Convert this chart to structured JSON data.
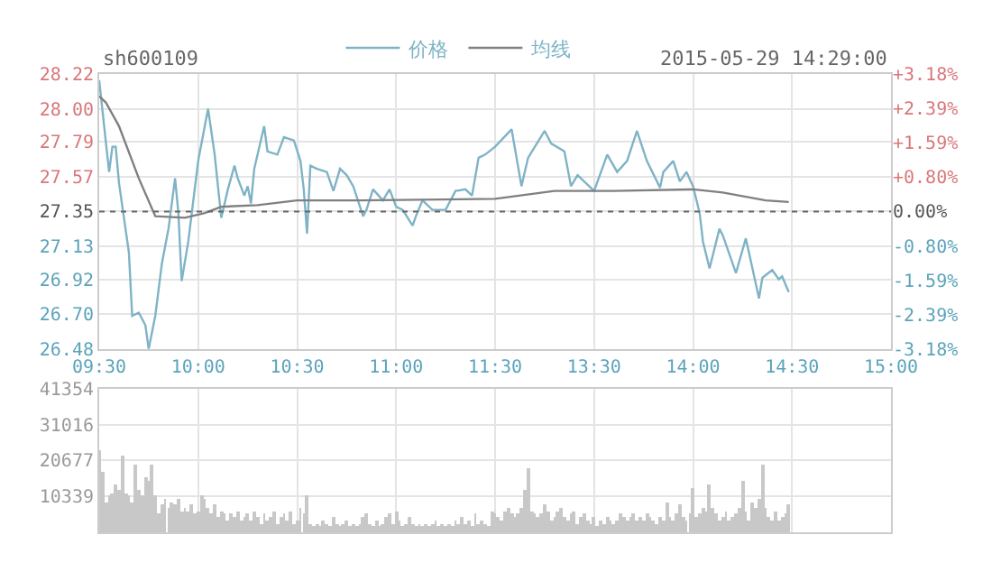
{
  "chart_data": [
    {
      "type": "line",
      "title": "sh600109",
      "annotations": [
        "2015-05-29 14:29:00"
      ],
      "legend": "top",
      "grid": true,
      "marker": "none",
      "categories": [
        "09:30",
        null,
        null,
        null,
        null,
        null,
        null,
        null,
        null,
        null,
        null,
        null,
        null,
        null,
        null,
        null,
        null,
        null,
        null,
        null,
        null,
        null,
        null,
        null,
        null,
        null,
        null,
        null,
        null,
        null,
        "10:00",
        null,
        null,
        null,
        null,
        null,
        null,
        null,
        null,
        null,
        null,
        null,
        null,
        null,
        null,
        null,
        null,
        null,
        null,
        null,
        null,
        null,
        null,
        null,
        null,
        null,
        null,
        null,
        null,
        null,
        "10:30",
        null,
        null,
        null,
        null,
        null,
        null,
        null,
        null,
        null,
        null,
        null,
        null,
        null,
        null,
        null,
        null,
        null,
        null,
        null,
        null,
        null,
        null,
        null,
        null,
        null,
        null,
        null,
        null,
        null,
        "11:00",
        null,
        null,
        null,
        null,
        null,
        null,
        null,
        null,
        null,
        null,
        null,
        null,
        null,
        null,
        null,
        null,
        null,
        null,
        null,
        null,
        null,
        null,
        null,
        null,
        null,
        null,
        null,
        null,
        null,
        "11:30",
        null,
        null,
        null,
        null,
        null,
        null,
        null,
        null,
        null,
        null,
        null,
        null,
        null,
        null,
        null,
        null,
        null,
        null,
        null,
        null,
        null,
        null,
        null,
        null,
        null,
        null,
        null,
        null,
        null,
        "13:30",
        null,
        null,
        null,
        null,
        null,
        null,
        null,
        null,
        null,
        null,
        null,
        null,
        null,
        null,
        null,
        null,
        null,
        null,
        null,
        null,
        null,
        null,
        null,
        null,
        null,
        null,
        null,
        null,
        null,
        "14:00",
        null,
        null,
        null,
        null,
        null,
        null,
        null,
        null,
        null,
        null,
        null,
        null,
        null,
        null,
        null,
        null,
        null,
        null,
        null,
        null,
        null,
        null,
        null,
        null,
        null,
        null,
        null,
        null,
        null,
        "14:30",
        null,
        null,
        null,
        null,
        null,
        null,
        null,
        null,
        null,
        null,
        null,
        null,
        null,
        null,
        null,
        null,
        null,
        null,
        null,
        null,
        null,
        null,
        null,
        null,
        null,
        null,
        null,
        null,
        null,
        "15:00"
      ],
      "ylim": [
        26.48,
        28.22
      ],
      "yticks": [
        26.48,
        {
          "value": 26.7,
          "label": "26.70"
        },
        26.92,
        27.13,
        27.35,
        27.57,
        27.79,
        {
          "value": 28.0,
          "label": "28.00"
        },
        28.22
      ],
      "y2lim": [
        -3.18,
        3.18
      ],
      "y2ticks": [
        {
          "value": -3.18,
          "label": "-3.18%"
        },
        {
          "value": -2.39,
          "label": "-2.39%"
        },
        {
          "value": -1.59,
          "label": "-1.59%"
        },
        {
          "value": -0.8,
          "label": "-0.80%"
        },
        {
          "value": 0,
          "label": "0.00%"
        },
        {
          "value": 0.8,
          "label": "+0.80%"
        },
        {
          "value": 1.59,
          "label": "+1.59%"
        },
        {
          "value": 2.39,
          "label": "+2.39%"
        },
        {
          "value": 3.18,
          "label": "+3.18%"
        }
      ],
      "ref_lines": [
        {
          "axis": "y",
          "value": 27.35,
          "label": null,
          "color": "#666666",
          "line_style": "dotted"
        }
      ],
      "series": [
        {
          "name": "价格",
          "color": "#7fb3c6",
          "values": [
            28.18,
            null,
            null,
            27.6,
            27.76,
            27.76,
            27.53,
            null,
            null,
            27.09,
            26.69,
            null,
            26.71,
            null,
            26.63,
            26.48,
            null,
            26.69,
            null,
            27.02,
            null,
            27.24,
            null,
            27.56,
            27.34,
            26.91,
            null,
            27.16,
            null,
            null,
            27.67,
            null,
            null,
            28.0,
            null,
            27.71,
            null,
            27.31,
            null,
            27.49,
            null,
            27.64,
            27.56,
            null,
            27.45,
            27.51,
            27.4,
            27.62,
            null,
            null,
            27.89,
            27.73,
            null,
            null,
            27.71,
            null,
            27.82,
            null,
            null,
            27.8,
            null,
            27.67,
            27.49,
            27.21,
            27.64,
            null,
            27.62,
            null,
            null,
            27.6,
            null,
            27.48,
            null,
            27.62,
            null,
            27.58,
            null,
            27.51,
            null,
            null,
            27.32,
            27.36,
            null,
            27.49,
            null,
            null,
            27.42,
            null,
            27.49,
            null,
            27.38,
            null,
            27.36,
            null,
            null,
            27.26,
            27.32,
            null,
            27.42,
            null,
            null,
            27.36,
            null,
            null,
            null,
            27.36,
            null,
            null,
            27.48,
            null,
            null,
            27.49,
            null,
            27.45,
            null,
            27.69,
            null,
            27.71,
            null,
            null,
            27.76,
            null,
            null,
            null,
            null,
            27.87,
            null,
            null,
            27.51,
            null,
            27.69,
            null,
            null,
            null,
            null,
            27.86,
            null,
            27.78,
            null,
            null,
            null,
            27.73,
            null,
            27.51,
            null,
            27.58,
            null,
            null,
            null,
            null,
            27.48,
            null,
            null,
            null,
            27.71,
            null,
            null,
            27.6,
            null,
            null,
            27.67,
            null,
            null,
            27.86,
            null,
            null,
            27.67,
            null,
            null,
            null,
            27.5,
            27.6,
            null,
            null,
            27.67,
            null,
            27.54,
            null,
            27.6,
            null,
            27.51,
            null,
            27.34,
            27.16,
            null,
            26.99,
            null,
            null,
            27.24,
            27.2,
            null,
            null,
            null,
            26.96,
            null,
            null,
            27.18,
            null,
            null,
            null,
            26.8,
            26.93,
            null,
            null,
            26.98,
            null,
            26.92,
            26.94,
            null,
            26.84,
            null,
            null,
            null,
            null,
            null,
            null,
            null,
            null,
            null,
            null,
            null,
            null,
            null,
            null,
            null,
            null,
            null,
            null,
            null,
            null,
            null,
            null,
            null,
            null,
            null,
            null,
            null,
            null,
            null,
            null,
            null
          ]
        },
        {
          "name": "均线",
          "color": "#808080",
          "values": [
            28.08,
            null,
            28.04,
            null,
            null,
            null,
            27.89,
            null,
            null,
            null,
            null,
            null,
            27.56,
            null,
            null,
            null,
            null,
            27.32,
            null,
            null,
            null,
            null,
            null,
            null,
            null,
            null,
            27.31,
            null,
            null,
            null,
            null,
            null,
            27.34,
            null,
            null,
            null,
            null,
            27.38,
            null,
            null,
            null,
            null,
            null,
            null,
            null,
            null,
            null,
            null,
            27.39,
            null,
            null,
            null,
            null,
            null,
            null,
            null,
            null,
            null,
            null,
            null,
            27.42,
            null,
            null,
            null,
            null,
            null,
            null,
            null,
            null,
            null,
            null,
            null,
            null,
            null,
            null,
            null,
            null,
            null,
            null,
            27.42,
            null,
            null,
            null,
            null,
            null,
            null,
            null,
            null,
            null,
            null,
            null,
            null,
            null,
            null,
            null,
            null,
            null,
            null,
            null,
            null,
            null,
            null,
            null,
            null,
            null,
            null,
            null,
            null,
            null,
            null,
            null,
            null,
            null,
            null,
            null,
            null,
            null,
            null,
            null,
            null,
            27.43,
            null,
            null,
            null,
            null,
            null,
            null,
            null,
            null,
            null,
            null,
            null,
            null,
            null,
            null,
            null,
            null,
            null,
            27.48,
            null,
            null,
            null,
            null,
            null,
            null,
            null,
            null,
            null,
            null,
            null,
            null,
            null,
            null,
            null,
            null,
            null,
            27.48,
            null,
            null,
            null,
            null,
            null,
            null,
            null,
            null,
            null,
            null,
            null,
            null,
            null,
            null,
            null,
            null,
            null,
            null,
            null,
            null,
            null,
            null,
            null,
            27.49,
            null,
            null,
            null,
            null,
            null,
            null,
            null,
            null,
            27.47,
            null,
            null,
            null,
            null,
            null,
            null,
            null,
            null,
            null,
            null,
            null,
            null,
            27.42,
            null,
            null,
            null,
            null,
            null,
            null,
            27.41,
            null,
            null,
            null,
            null,
            null,
            null,
            null,
            null,
            null,
            null,
            null,
            null,
            null,
            null,
            null,
            null,
            null,
            null,
            null,
            null,
            null,
            null,
            null,
            null,
            null,
            null,
            null,
            null,
            null,
            null,
            null
          ]
        }
      ]
    },
    {
      "type": "bar",
      "grid": true,
      "tick_labels": "y",
      "categories": [
        null,
        null,
        null,
        null,
        null,
        null,
        null,
        null,
        null,
        null,
        null,
        null,
        null,
        null,
        null,
        null,
        null,
        null,
        null,
        null,
        null,
        null,
        null,
        null,
        null,
        null,
        null,
        null,
        null,
        null,
        null,
        null,
        null,
        null,
        null,
        null,
        null,
        null,
        null,
        null,
        null,
        null,
        null,
        null,
        null,
        null,
        null,
        null,
        null,
        null,
        null,
        null,
        null,
        null,
        null,
        null,
        null,
        null,
        null,
        null,
        null,
        null,
        null,
        null,
        null,
        null,
        null,
        null,
        null,
        null,
        null,
        null,
        null,
        null,
        null,
        null,
        null,
        null,
        null,
        null,
        null,
        null,
        null,
        null,
        null,
        null,
        null,
        null,
        null,
        null,
        null,
        null,
        null,
        null,
        null,
        null,
        null,
        null,
        null,
        null,
        null,
        null,
        null,
        null,
        null,
        null,
        null,
        null,
        null,
        null,
        null,
        null,
        null,
        null,
        null,
        null,
        null,
        null,
        null,
        null,
        null,
        null,
        null,
        null,
        null,
        null,
        null,
        null,
        null,
        null,
        null,
        null,
        null,
        null,
        null,
        null,
        null,
        null,
        null,
        null,
        null,
        null,
        null,
        null,
        null,
        null,
        null,
        null,
        null,
        null,
        null,
        null,
        null,
        null,
        null,
        null,
        null,
        null,
        null,
        null,
        null,
        null,
        null,
        null,
        null,
        null,
        null,
        null,
        null,
        null,
        null,
        null,
        null,
        null,
        null,
        null,
        null,
        null,
        null,
        null,
        null,
        null,
        null,
        null,
        null,
        null,
        null,
        null,
        null,
        null,
        null,
        null,
        null,
        null,
        null,
        null,
        null,
        null,
        null,
        null,
        null,
        null,
        null,
        null,
        null,
        null,
        null,
        null,
        null,
        null,
        null,
        null,
        null,
        null,
        null,
        null,
        null,
        null,
        null,
        null,
        null,
        null,
        null,
        null,
        null,
        null,
        null,
        null,
        null,
        null,
        null,
        null,
        null,
        null,
        null,
        null,
        null,
        null,
        null,
        null,
        null
      ],
      "ylim": [
        0,
        41354
      ],
      "yticks": [
        10339,
        20677,
        31016,
        41354
      ],
      "series": [
        {
          "color": "#c8c8c8",
          "values": [
            23600,
            17500,
            8800,
            10500,
            11400,
            14000,
            12000,
            21900,
            11400,
            10500,
            8800,
            19300,
            12300,
            10500,
            15800,
            14900,
            19300,
            10500,
            5300,
            7900,
            9600,
            7000,
            8800,
            7900,
            9600,
            6100,
            7000,
            6100,
            7900,
            5300,
            6100,
            10500,
            9600,
            7000,
            5300,
            7900,
            4400,
            6100,
            5300,
            3500,
            5300,
            4400,
            6100,
            3500,
            4400,
            5300,
            3500,
            6100,
            4400,
            2600,
            5300,
            3500,
            4400,
            6100,
            2600,
            4400,
            5300,
            3500,
            6100,
            2600,
            3500,
            7000,
            5300,
            10500,
            2600,
            1800,
            2600,
            1800,
            3500,
            2600,
            1800,
            4400,
            2600,
            1800,
            2600,
            3500,
            1800,
            2600,
            1800,
            2600,
            4400,
            5300,
            2600,
            1800,
            3500,
            1800,
            2600,
            4400,
            5300,
            2600,
            6100,
            3500,
            1800,
            2600,
            4400,
            2600,
            1800,
            2600,
            1800,
            2600,
            1800,
            2600,
            3500,
            1800,
            2600,
            1800,
            2600,
            1800,
            3500,
            2600,
            4400,
            2600,
            3500,
            1800,
            5300,
            2600,
            3500,
            2600,
            1800,
            6100,
            5300,
            4400,
            3500,
            6100,
            7000,
            5300,
            4400,
            5300,
            7000,
            12300,
            18400,
            6100,
            5300,
            4400,
            5300,
            7900,
            6100,
            3500,
            4400,
            6100,
            7000,
            4400,
            3500,
            5300,
            6100,
            2600,
            4400,
            5300,
            3500,
            2600,
            4400,
            1800,
            3500,
            2600,
            4400,
            3500,
            2600,
            3500,
            5300,
            4400,
            3500,
            4400,
            5300,
            3500,
            4400,
            3500,
            5300,
            4400,
            3500,
            2600,
            4400,
            3500,
            8800,
            4400,
            3500,
            5300,
            7900,
            4400,
            3500,
            5300,
            12600,
            4400,
            5300,
            7000,
            6100,
            14000,
            7000,
            5300,
            3500,
            4400,
            6100,
            3500,
            4400,
            5300,
            7000,
            15000,
            6100,
            3500,
            8800,
            7000,
            9600,
            19600,
            7000,
            4400,
            3500,
            6100,
            3500,
            4400,
            5300,
            7900,
            null,
            null,
            null,
            null,
            null,
            null,
            null,
            null,
            null,
            null,
            null,
            null,
            null,
            null,
            null,
            null,
            null,
            null,
            null,
            null,
            null,
            null,
            null,
            null,
            null,
            null,
            null,
            null,
            null,
            null,
            null
          ]
        }
      ]
    }
  ]
}
